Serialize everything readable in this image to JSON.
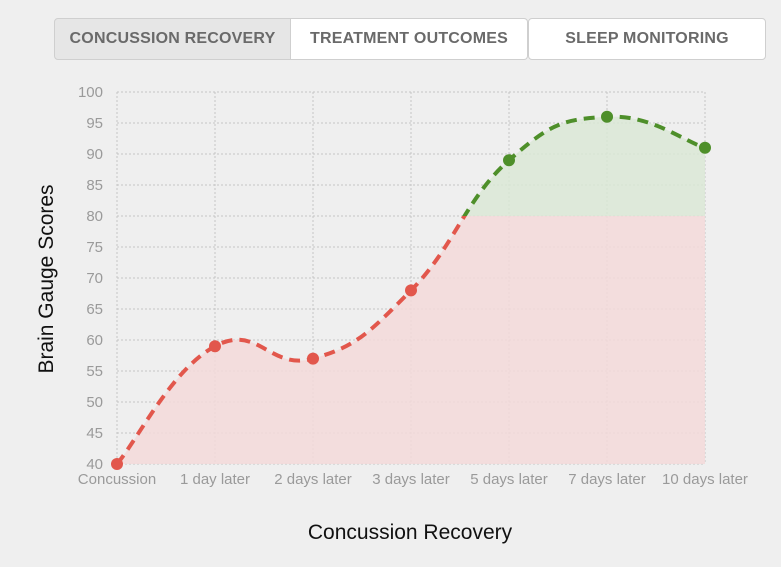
{
  "tabs": [
    {
      "label": "CONCUSSION RECOVERY",
      "active": true
    },
    {
      "label": "TREATMENT OUTCOMES",
      "active": false
    },
    {
      "label": "SLEEP MONITORING",
      "active": false
    }
  ],
  "colors": {
    "below_threshold": "#e2574c",
    "above_threshold": "#4e8f2a",
    "below_fill": "#f3d9d9",
    "above_fill": "#dbe7d6",
    "grid": "#c4c4c4"
  },
  "chart_data": {
    "type": "area",
    "xlabel": "Concussion Recovery",
    "ylabel": "Brain Gauge Scores",
    "categories": [
      "Concussion",
      "1 day later",
      "2 days later",
      "3 days later",
      "5 days later",
      "7 days later",
      "10 days later"
    ],
    "values": [
      40,
      59,
      57,
      68,
      89,
      96,
      91
    ],
    "ylim": [
      40,
      100
    ],
    "yticks": [
      40,
      45,
      50,
      55,
      60,
      65,
      70,
      75,
      80,
      85,
      90,
      95,
      100
    ],
    "threshold": 80,
    "grid": true,
    "line_style": "dashed"
  }
}
